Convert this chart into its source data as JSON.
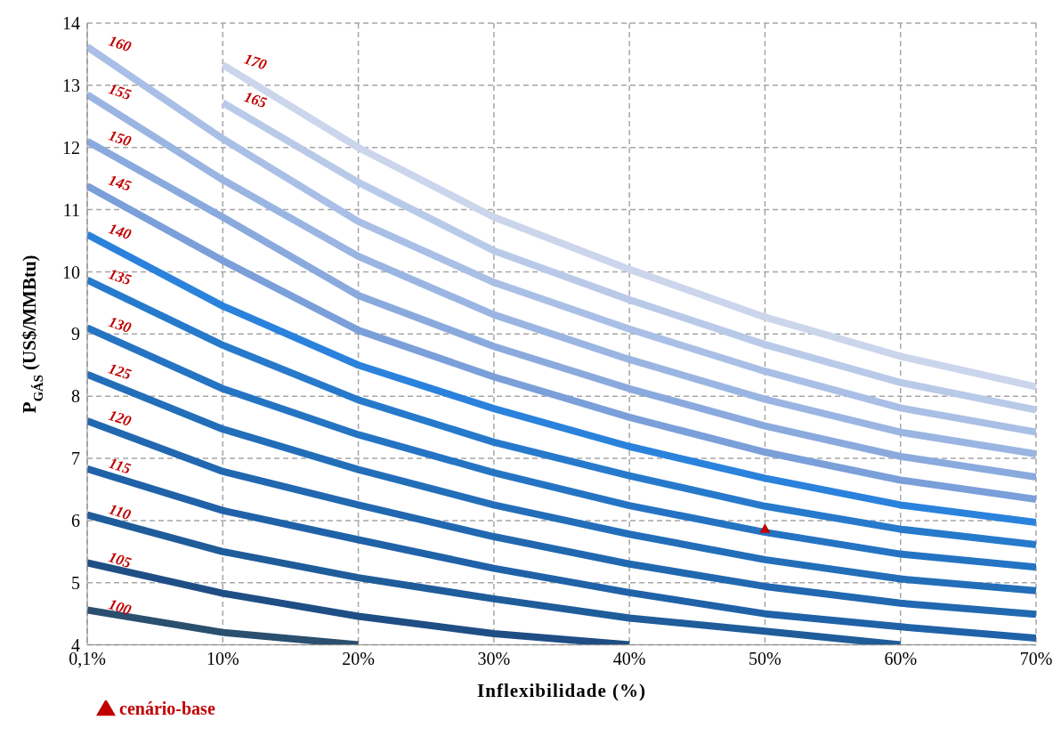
{
  "chart_data": {
    "type": "line",
    "xlabel": "Inflexibilidade (%)",
    "ylabel": "P$_{GÁS}$ (US$/MMBtu)",
    "categories": [
      "0,1%",
      "10%",
      "20%",
      "30%",
      "40%",
      "50%",
      "60%",
      "70%"
    ],
    "ylim": [
      4,
      14
    ],
    "yticks": [
      4,
      5,
      6,
      7,
      8,
      9,
      10,
      11,
      12,
      13,
      14
    ],
    "grid": true,
    "line_style": "solid",
    "marker": "none",
    "legend": "bottom left",
    "series": [
      {
        "name": "100",
        "color": "#2b4f6e",
        "values": [
          4.56,
          4.2,
          4.0,
          null,
          null,
          null,
          null,
          null
        ]
      },
      {
        "name": "105",
        "color": "#1f4e85",
        "values": [
          5.32,
          4.83,
          4.46,
          4.18,
          4.0,
          null,
          null,
          null
        ]
      },
      {
        "name": "110",
        "color": "#1f5c9a",
        "values": [
          6.09,
          5.5,
          5.08,
          4.74,
          4.43,
          4.22,
          4.0,
          null
        ]
      },
      {
        "name": "115",
        "color": "#2062a8",
        "values": [
          6.83,
          6.16,
          5.69,
          5.23,
          4.84,
          4.5,
          4.29,
          4.11
        ]
      },
      {
        "name": "120",
        "color": "#2168b0",
        "values": [
          7.6,
          6.79,
          6.25,
          5.74,
          5.3,
          4.94,
          4.67,
          4.49
        ]
      },
      {
        "name": "125",
        "color": "#236eb9",
        "values": [
          8.35,
          7.47,
          6.82,
          6.25,
          5.78,
          5.37,
          5.06,
          4.87
        ]
      },
      {
        "name": "130",
        "color": "#2574c3",
        "values": [
          9.1,
          8.12,
          7.38,
          6.77,
          6.24,
          5.81,
          5.46,
          5.25
        ]
      },
      {
        "name": "135",
        "color": "#277acb",
        "values": [
          9.87,
          8.82,
          7.94,
          7.26,
          6.72,
          6.23,
          5.86,
          5.61
        ]
      },
      {
        "name": "140",
        "color": "#2a82dc",
        "values": [
          10.6,
          9.45,
          8.5,
          7.8,
          7.19,
          6.68,
          6.25,
          5.97
        ]
      },
      {
        "name": "145",
        "color": "#7a9fd9",
        "values": [
          11.38,
          10.18,
          9.06,
          8.31,
          7.66,
          7.1,
          6.65,
          6.34
        ]
      },
      {
        "name": "150",
        "color": "#8aaade",
        "values": [
          12.1,
          10.88,
          9.62,
          8.8,
          8.12,
          7.52,
          7.03,
          6.7
        ]
      },
      {
        "name": "155",
        "color": "#9ab5e2",
        "values": [
          12.85,
          11.48,
          10.25,
          9.31,
          8.59,
          7.95,
          7.42,
          7.07
        ]
      },
      {
        "name": "160",
        "color": "#aabfe6",
        "values": [
          13.62,
          12.14,
          10.81,
          9.83,
          9.08,
          8.4,
          7.81,
          7.42
        ]
      },
      {
        "name": "165",
        "color": "#b9cae9",
        "values": [
          null,
          12.72,
          11.44,
          10.34,
          9.55,
          8.83,
          8.22,
          7.78
        ]
      },
      {
        "name": "170",
        "color": "#cbd5eb",
        "values": [
          null,
          13.33,
          12.0,
          10.88,
          10.04,
          9.27,
          8.64,
          8.15
        ]
      },
      {
        "name": "cenário-base",
        "type": "scatter",
        "marker": "triangle",
        "color": "#c00000",
        "x": [
          "50%"
        ],
        "values": [
          5.85
        ]
      }
    ]
  }
}
